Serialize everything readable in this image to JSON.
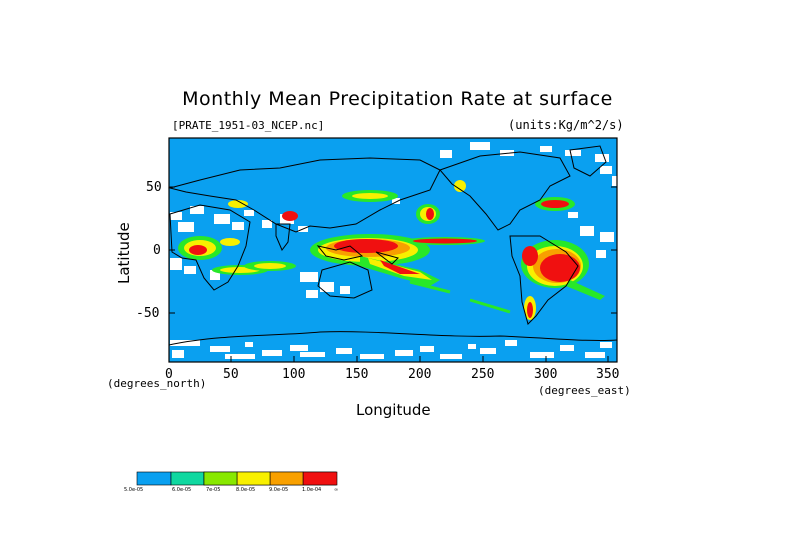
{
  "title": "Monthly Mean Precipitation Rate at surface",
  "file_label": "[PRATE_1951-03_NCEP.nc]",
  "units_label": "(units:Kg/m^2/s)",
  "axes": {
    "ylabel": "Latitude",
    "xlabel": "Longitude",
    "y_unit": "(degrees_north)",
    "x_unit": "(degrees_east)",
    "y_ticks": [
      "50",
      "0",
      "-50"
    ],
    "x_ticks": [
      "0",
      "50",
      "100",
      "150",
      "200",
      "250",
      "300",
      "350"
    ]
  },
  "colors": {
    "ocean_low": "#0aa0f0",
    "level2": "#10d8a0",
    "level3": "#28e828",
    "level4": "#b0f000",
    "level5": "#f8f000",
    "level6": "#f8a000",
    "level7": "#f01010",
    "missing": "#ffffff"
  },
  "legend": {
    "labels": [
      "5.0e-05",
      "6.0e-05",
      "7e-05",
      "8.0e-05",
      "9.0e-05",
      "1.0e-04",
      "∞"
    ]
  }
}
